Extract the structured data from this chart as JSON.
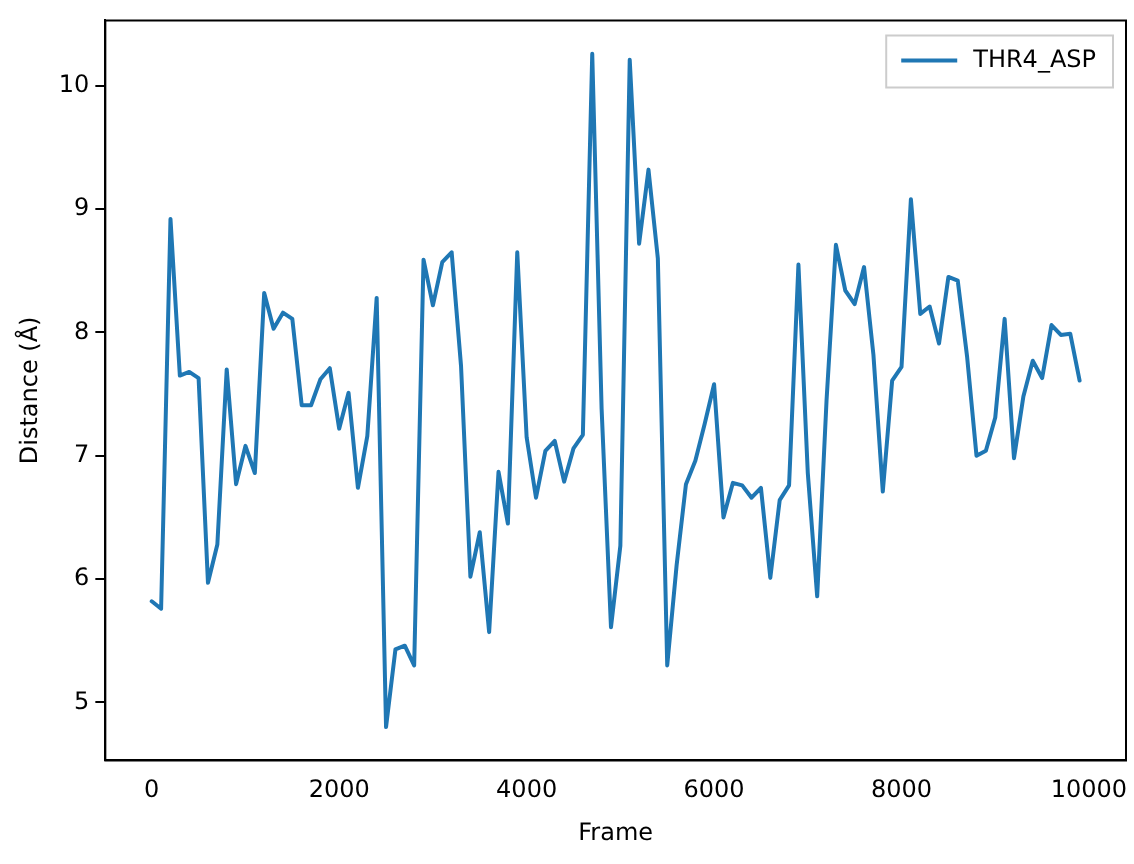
{
  "chart_data": {
    "type": "line",
    "xlabel": "Frame",
    "ylabel": "Distance (Å)",
    "x": [
      0,
      100,
      200,
      300,
      400,
      500,
      600,
      700,
      800,
      900,
      1000,
      1100,
      1200,
      1300,
      1400,
      1500,
      1600,
      1700,
      1800,
      1900,
      2000,
      2100,
      2200,
      2300,
      2400,
      2500,
      2600,
      2700,
      2800,
      2900,
      3000,
      3100,
      3200,
      3300,
      3400,
      3500,
      3600,
      3700,
      3800,
      3900,
      4000,
      4100,
      4200,
      4300,
      4400,
      4500,
      4600,
      4700,
      4800,
      4900,
      5000,
      5100,
      5200,
      5300,
      5400,
      5500,
      5600,
      5700,
      5800,
      5900,
      6000,
      6100,
      6200,
      6300,
      6400,
      6500,
      6600,
      6700,
      6800,
      6900,
      7000,
      7100,
      7200,
      7300,
      7400,
      7500,
      7600,
      7700,
      7800,
      7900,
      8000,
      8100,
      8200,
      8300,
      8400,
      8500,
      8600,
      8700,
      8800,
      8900,
      9000,
      9100,
      9200,
      9300,
      9400,
      9500,
      9600,
      9700,
      9800,
      9900
    ],
    "series": [
      {
        "name": "THR4_ASP",
        "color": "#1f77b4",
        "values": [
          5.82,
          5.76,
          8.92,
          7.65,
          7.68,
          7.63,
          5.97,
          6.28,
          7.7,
          6.77,
          7.08,
          6.86,
          8.32,
          8.03,
          8.16,
          8.11,
          7.41,
          7.41,
          7.62,
          7.71,
          7.22,
          7.51,
          6.74,
          7.16,
          8.28,
          4.8,
          5.43,
          5.46,
          5.3,
          8.59,
          8.22,
          8.57,
          8.65,
          7.73,
          6.02,
          6.38,
          5.57,
          6.87,
          6.45,
          8.65,
          7.15,
          6.66,
          7.04,
          7.12,
          6.79,
          7.06,
          7.17,
          10.26,
          7.38,
          5.61,
          6.27,
          10.21,
          8.72,
          9.32,
          8.6,
          5.3,
          6.11,
          6.77,
          6.96,
          7.26,
          7.58,
          6.5,
          6.78,
          6.76,
          6.66,
          6.74,
          6.01,
          6.64,
          6.76,
          8.55,
          6.86,
          5.86,
          7.45,
          8.71,
          8.34,
          8.23,
          8.53,
          7.82,
          6.71,
          7.61,
          7.72,
          9.08,
          8.15,
          8.21,
          7.91,
          8.45,
          8.42,
          7.8,
          7.0,
          7.04,
          7.31,
          8.11,
          6.98,
          7.48,
          7.77,
          7.63,
          8.06,
          7.98,
          7.99,
          7.61
        ]
      }
    ],
    "xlim": [
      -495,
      10395
    ],
    "ylim": [
      4.53,
      10.53
    ],
    "xticks": [
      0,
      2000,
      4000,
      6000,
      8000,
      10000
    ],
    "yticks": [
      5,
      6,
      7,
      8,
      9,
      10
    ],
    "legend": "top right",
    "marker": "none",
    "line_style": "solid"
  }
}
